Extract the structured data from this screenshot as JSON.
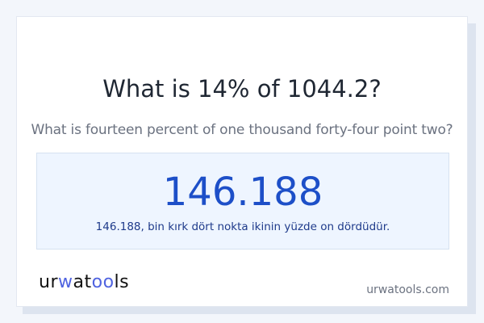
{
  "question": {
    "title": "What is 14% of 1044.2?",
    "subtitle": "What is fourteen percent of one thousand forty-four point two?"
  },
  "result": {
    "value": "146.188",
    "description": "146.188, bin kırk dört nokta ikinin yüzde on dördüdür."
  },
  "footer": {
    "logo_text": "urwatools",
    "logo_parts": [
      "ur",
      "w",
      "at",
      "oo",
      "ls"
    ],
    "site": "urwatools.com"
  },
  "colors": {
    "accent": "#1d4fc8",
    "result_bg": "#eef5ff",
    "logo_accent": "#4f63e0"
  }
}
